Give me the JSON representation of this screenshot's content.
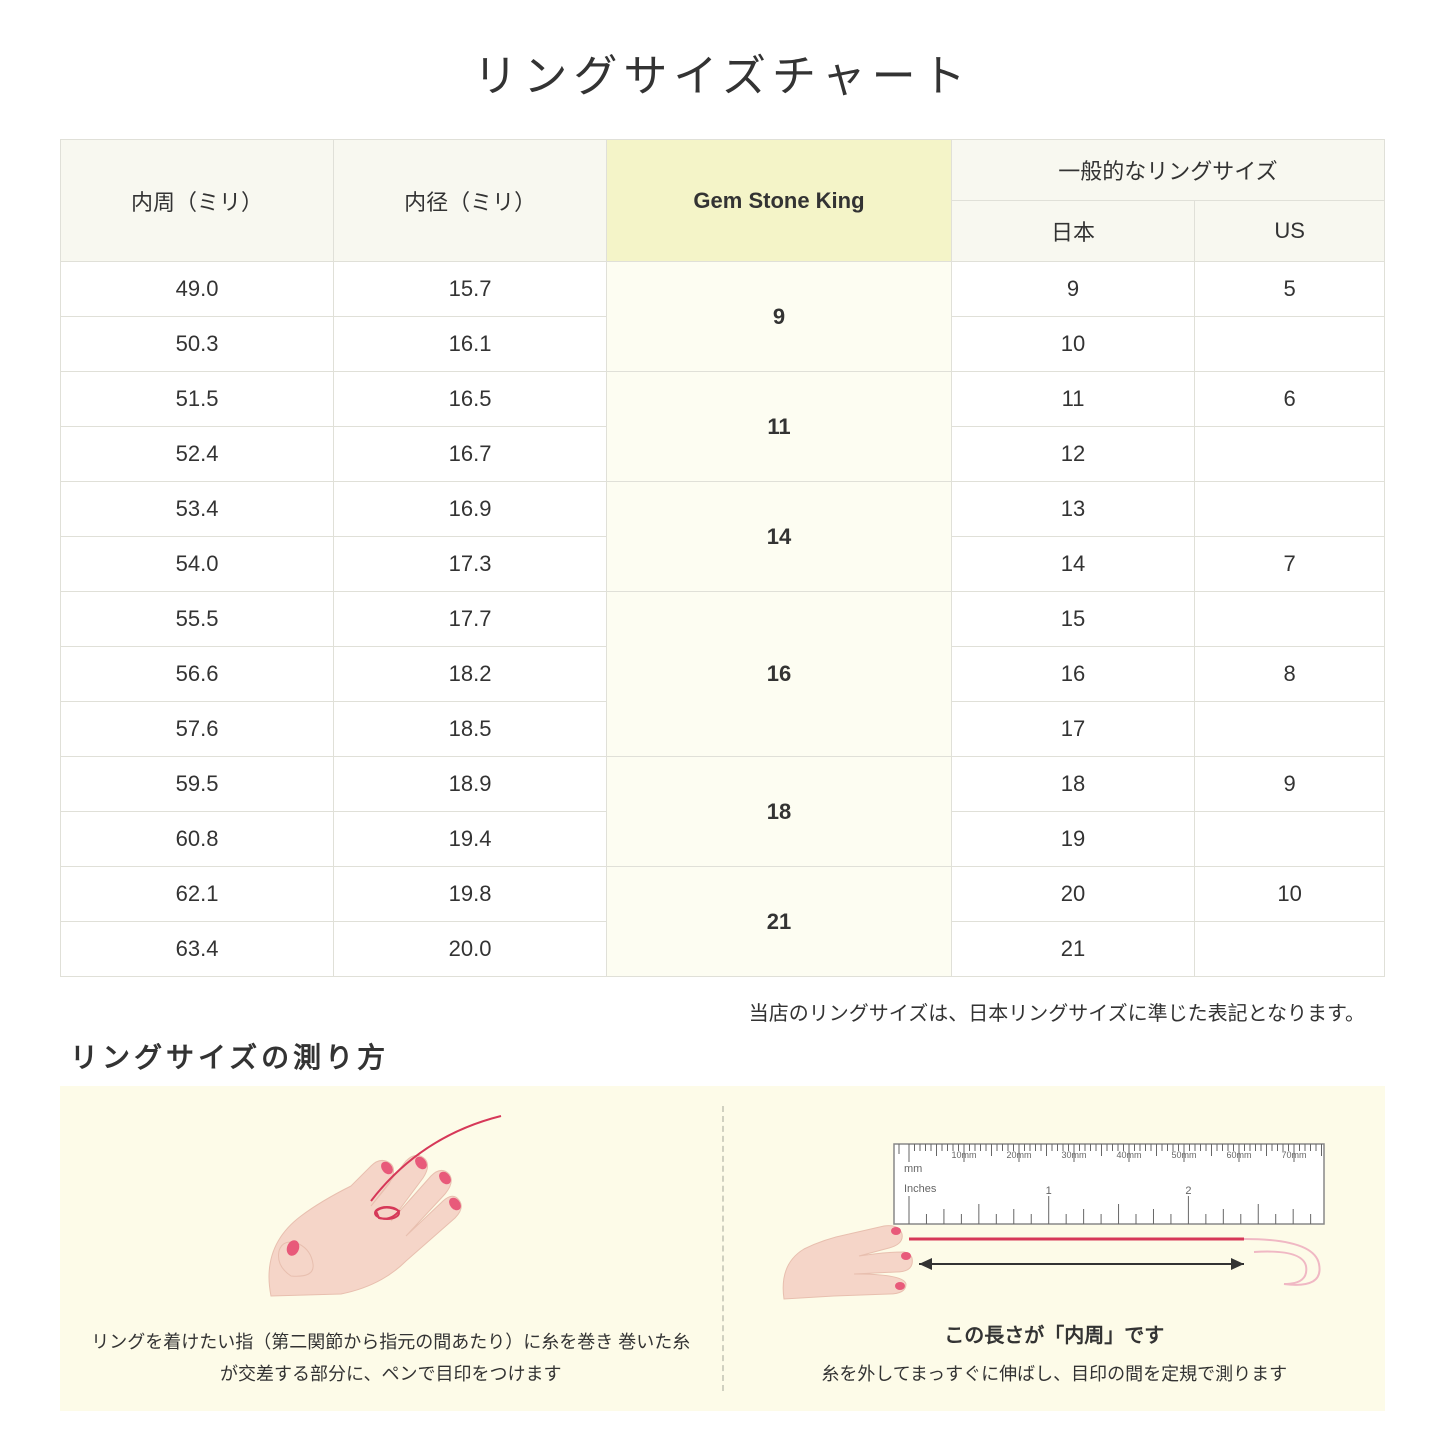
{
  "title": "リングサイズチャート",
  "headers": {
    "circumference": "内周（ミリ）",
    "diameter": "内径（ミリ）",
    "gsk": "Gem Stone King",
    "general": "一般的なリングサイズ",
    "japan": "日本",
    "us": "US"
  },
  "groups": [
    {
      "gsk": "9",
      "rows": [
        {
          "c": "49.0",
          "d": "15.7",
          "jp": "9",
          "us": "5"
        },
        {
          "c": "50.3",
          "d": "16.1",
          "jp": "10",
          "us": ""
        }
      ]
    },
    {
      "gsk": "11",
      "rows": [
        {
          "c": "51.5",
          "d": "16.5",
          "jp": "11",
          "us": "6"
        },
        {
          "c": "52.4",
          "d": "16.7",
          "jp": "12",
          "us": ""
        }
      ]
    },
    {
      "gsk": "14",
      "rows": [
        {
          "c": "53.4",
          "d": "16.9",
          "jp": "13",
          "us": ""
        },
        {
          "c": "54.0",
          "d": "17.3",
          "jp": "14",
          "us": "7"
        }
      ]
    },
    {
      "gsk": "16",
      "rows": [
        {
          "c": "55.5",
          "d": "17.7",
          "jp": "15",
          "us": ""
        },
        {
          "c": "56.6",
          "d": "18.2",
          "jp": "16",
          "us": "8"
        },
        {
          "c": "57.6",
          "d": "18.5",
          "jp": "17",
          "us": ""
        }
      ]
    },
    {
      "gsk": "18",
      "rows": [
        {
          "c": "59.5",
          "d": "18.9",
          "jp": "18",
          "us": "9"
        },
        {
          "c": "60.8",
          "d": "19.4",
          "jp": "19",
          "us": ""
        }
      ]
    },
    {
      "gsk": "21",
      "rows": [
        {
          "c": "62.1",
          "d": "19.8",
          "jp": "20",
          "us": "10"
        },
        {
          "c": "63.4",
          "d": "20.0",
          "jp": "21",
          "us": ""
        }
      ]
    }
  ],
  "note": "当店のリングサイズは、日本リングサイズに準じた表記となります。",
  "howto": {
    "title": "リングサイズの測り方",
    "left_caption": "リングを着けたい指（第二関節から指元の間あたり）に糸を巻き\n巻いた糸が交差する部分に、ペンで目印をつけます",
    "right_caption": "糸を外してまっすぐに伸ばし、目印の間を定規で測ります",
    "ruler_label": "この長さが「内周」です",
    "ruler_ticks": [
      "10mm",
      "20mm",
      "30mm",
      "40mm",
      "50mm",
      "60mm",
      "70mm"
    ],
    "ruler_unit_mm": "mm",
    "ruler_unit_in": "Inches",
    "ruler_inch_labels": [
      "1",
      "2"
    ]
  },
  "colors": {
    "header_bg": "#f8f8f0",
    "gsk_header_bg": "#f4f4c8",
    "gsk_cell_bg": "#fdfdf2",
    "border": "#e0e0d8",
    "howto_bg": "#fdfbe8",
    "skin": "#f5d5c8",
    "skin_shadow": "#e8bfaf",
    "nail": "#e85a7a",
    "thread": "#d63858",
    "ruler_body": "#ffffff",
    "ruler_border": "#888888"
  }
}
